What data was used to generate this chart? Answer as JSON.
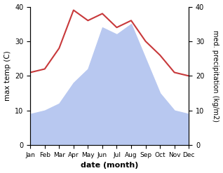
{
  "months": [
    "Jan",
    "Feb",
    "Mar",
    "Apr",
    "May",
    "Jun",
    "Jul",
    "Aug",
    "Sep",
    "Oct",
    "Nov",
    "Dec"
  ],
  "temperature": [
    21,
    22,
    28,
    39,
    36,
    38,
    34,
    36,
    30,
    26,
    21,
    20
  ],
  "precipitation": [
    9,
    10,
    12,
    18,
    22,
    34,
    32,
    35,
    25,
    15,
    10,
    9
  ],
  "temp_color": "#c8393b",
  "precip_fill_color": "#b8c8f0",
  "ylabel_left": "max temp (C)",
  "ylabel_right": "med. precipitation (kg/m2)",
  "xlabel": "date (month)",
  "ylim_left": [
    0,
    40
  ],
  "ylim_right": [
    0,
    40
  ],
  "yticks_left": [
    0,
    10,
    20,
    30,
    40
  ],
  "yticks_right": [
    0,
    10,
    20,
    30,
    40
  ],
  "background_color": "#ffffff"
}
